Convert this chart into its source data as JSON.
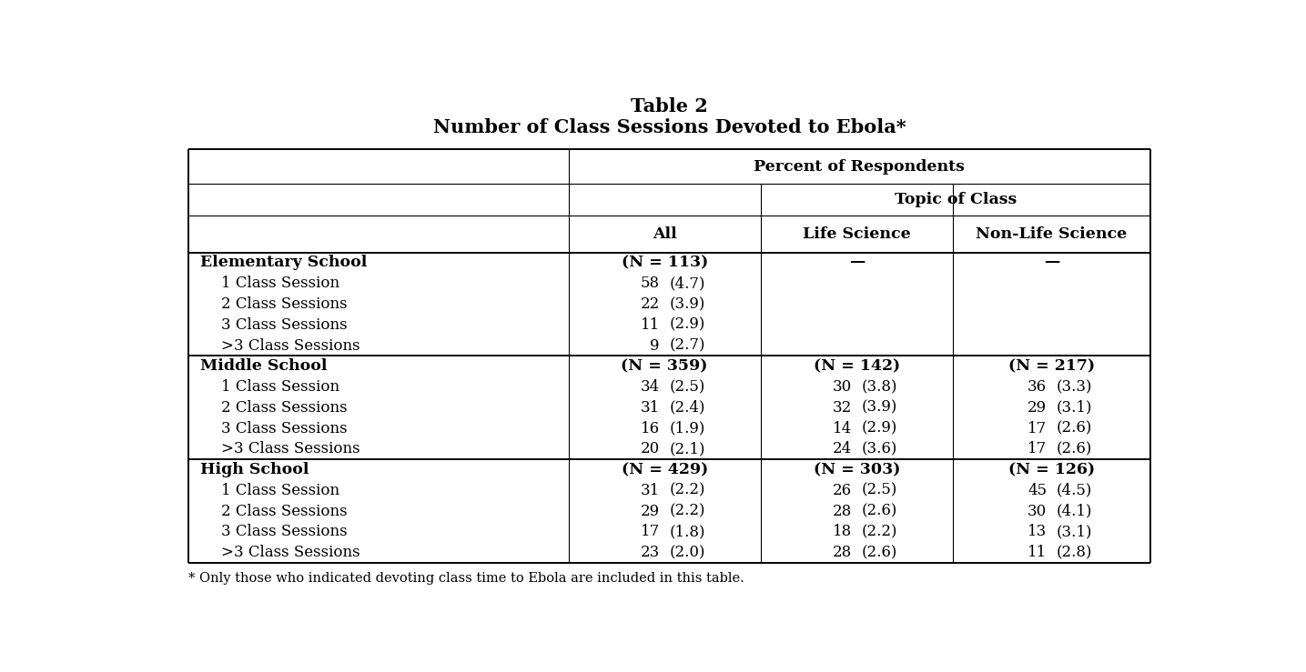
{
  "title_line1": "Table 2",
  "title_line2": "Number of Class Sessions Devoted to Ebola*",
  "footnote": "* Only those who indicated devoting class time to Ebola are included in this table.",
  "super_header1": "Percent of Respondents",
  "super_header2": "Topic of Class",
  "col_labels": [
    "All",
    "Life Science",
    "Non-Life Science"
  ],
  "rows": [
    {
      "label": "Elementary School",
      "bold": true,
      "all": "(N = 113)",
      "life": "—",
      "nonlife": "—",
      "indent": false
    },
    {
      "label": "1 Class Session",
      "bold": false,
      "all_n": "58",
      "all_se": "(4.7)",
      "life_n": "",
      "life_se": "",
      "nonlife_n": "",
      "nonlife_se": "",
      "indent": true
    },
    {
      "label": "2 Class Sessions",
      "bold": false,
      "all_n": "22",
      "all_se": "(3.9)",
      "life_n": "",
      "life_se": "",
      "nonlife_n": "",
      "nonlife_se": "",
      "indent": true
    },
    {
      "label": "3 Class Sessions",
      "bold": false,
      "all_n": "11",
      "all_se": "(2.9)",
      "life_n": "",
      "life_se": "",
      "nonlife_n": "",
      "nonlife_se": "",
      "indent": true
    },
    {
      "label": ">3 Class Sessions",
      "bold": false,
      "all_n": "9",
      "all_se": "(2.7)",
      "life_n": "",
      "life_se": "",
      "nonlife_n": "",
      "nonlife_se": "",
      "indent": true
    },
    {
      "label": "Middle School",
      "bold": true,
      "all": "(N = 359)",
      "life": "(N = 142)",
      "nonlife": "(N = 217)",
      "indent": false
    },
    {
      "label": "1 Class Session",
      "bold": false,
      "all_n": "34",
      "all_se": "(2.5)",
      "life_n": "30",
      "life_se": "(3.8)",
      "nonlife_n": "36",
      "nonlife_se": "(3.3)",
      "indent": true
    },
    {
      "label": "2 Class Sessions",
      "bold": false,
      "all_n": "31",
      "all_se": "(2.4)",
      "life_n": "32",
      "life_se": "(3.9)",
      "nonlife_n": "29",
      "nonlife_se": "(3.1)",
      "indent": true
    },
    {
      "label": "3 Class Sessions",
      "bold": false,
      "all_n": "16",
      "all_se": "(1.9)",
      "life_n": "14",
      "life_se": "(2.9)",
      "nonlife_n": "17",
      "nonlife_se": "(2.6)",
      "indent": true
    },
    {
      "label": ">3 Class Sessions",
      "bold": false,
      "all_n": "20",
      "all_se": "(2.1)",
      "life_n": "24",
      "life_se": "(3.6)",
      "nonlife_n": "17",
      "nonlife_se": "(2.6)",
      "indent": true
    },
    {
      "label": "High School",
      "bold": true,
      "all": "(N = 429)",
      "life": "(N = 303)",
      "nonlife": "(N = 126)",
      "indent": false
    },
    {
      "label": "1 Class Session",
      "bold": false,
      "all_n": "31",
      "all_se": "(2.2)",
      "life_n": "26",
      "life_se": "(2.5)",
      "nonlife_n": "45",
      "nonlife_se": "(4.5)",
      "indent": true
    },
    {
      "label": "2 Class Sessions",
      "bold": false,
      "all_n": "29",
      "all_se": "(2.2)",
      "life_n": "28",
      "life_se": "(2.6)",
      "nonlife_n": "30",
      "nonlife_se": "(4.1)",
      "indent": true
    },
    {
      "label": "3 Class Sessions",
      "bold": false,
      "all_n": "17",
      "all_se": "(1.8)",
      "life_n": "18",
      "life_se": "(2.2)",
      "nonlife_n": "13",
      "nonlife_se": "(3.1)",
      "indent": true
    },
    {
      "label": ">3 Class Sessions",
      "bold": false,
      "all_n": "23",
      "all_se": "(2.0)",
      "life_n": "28",
      "life_se": "(2.6)",
      "nonlife_n": "11",
      "nonlife_se": "(2.8)",
      "indent": true
    }
  ],
  "background_color": "#ffffff",
  "text_color": "#000000"
}
